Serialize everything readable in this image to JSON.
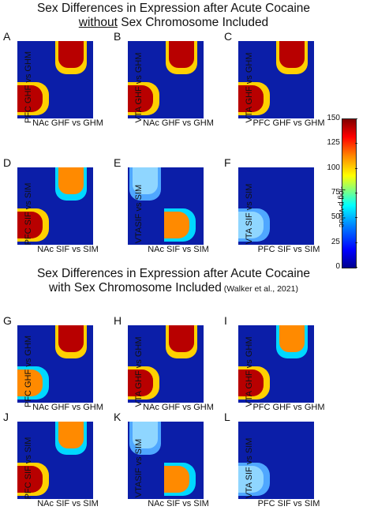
{
  "section1": {
    "title_line1": "Sex Differences in Expression after Acute Cocaine",
    "title_line2_underlined": "without",
    "title_line2_rest": " Sex Chromosome Included"
  },
  "section2": {
    "title_line1": "Sex Differences in Expression after Acute Cocaine",
    "title_line2": "with Sex Chromosome Included",
    "citation": " (Walker et al., 2021)"
  },
  "colorbar": {
    "label": "-log p-value",
    "ticks": [
      "150",
      "125",
      "100",
      "75",
      "50",
      "25",
      "0"
    ],
    "max": 150,
    "min": 0
  },
  "panels": [
    {
      "letter": "A",
      "ylabel": "PFC GHF vs GHM",
      "xlabel": "NAc GHF vs GHM"
    },
    {
      "letter": "B",
      "ylabel": "VTA GHF vs GHM",
      "xlabel": "NAc GHF vs GHM"
    },
    {
      "letter": "C",
      "ylabel": "VTA GHF vs GHM",
      "xlabel": "PFC GHF vs GHM"
    },
    {
      "letter": "D",
      "ylabel": "PFC SIF vs SIM",
      "xlabel": "NAc SIF vs SIM"
    },
    {
      "letter": "E",
      "ylabel": "VTASIF vs SIM",
      "xlabel": "NAc SIF vs SIM"
    },
    {
      "letter": "F",
      "ylabel": "VTA SIF vs SIM",
      "xlabel": "PFC SIF vs SIM"
    },
    {
      "letter": "G",
      "ylabel": "PFC GHF vs GHM",
      "xlabel": "NAc GHF vs GHM"
    },
    {
      "letter": "H",
      "ylabel": "VTA GHF vs GHM",
      "xlabel": "NAc GHF vs GHM"
    },
    {
      "letter": "I",
      "ylabel": "VTA GHF vs GHM",
      "xlabel": "PFC GHF vs GHM"
    },
    {
      "letter": "J",
      "ylabel": "PFC SIF vs SIM",
      "xlabel": "NAc SIF vs SIM"
    },
    {
      "letter": "K",
      "ylabel": "VTASIF vs SIM",
      "xlabel": "NAc SIF vs SIM"
    },
    {
      "letter": "L",
      "ylabel": "VTA SIF vs SIM",
      "xlabel": "PFC SIF vs SIM"
    }
  ],
  "tile_style": {
    "strong": "Strong red",
    "medium": "Orange/yellow",
    "weak": "Light blue",
    "none": "Dark blue"
  },
  "heatmap_levels": {
    "A": {
      "tl": "none",
      "tr": "strong",
      "bl": "strong",
      "br": "none"
    },
    "B": {
      "tl": "none",
      "tr": "strong",
      "bl": "strong",
      "br": "none"
    },
    "C": {
      "tl": "none",
      "tr": "strong",
      "bl": "strong",
      "br": "none"
    },
    "D": {
      "tl": "none",
      "tr": "medium",
      "bl": "strong",
      "br": "none"
    },
    "E": {
      "tl": "weak",
      "tr": "none",
      "bl": "none",
      "br": "medium"
    },
    "F": {
      "tl": "none",
      "tr": "none",
      "bl": "weak",
      "br": "none"
    },
    "G": {
      "tl": "none",
      "tr": "strong",
      "bl": "medium",
      "br": "none"
    },
    "H": {
      "tl": "none",
      "tr": "strong",
      "bl": "strong",
      "br": "none"
    },
    "I": {
      "tl": "none",
      "tr": "medium",
      "bl": "strong",
      "br": "none"
    },
    "J": {
      "tl": "none",
      "tr": "medium",
      "bl": "strong",
      "br": "none"
    },
    "K": {
      "tl": "weak",
      "tr": "none",
      "bl": "none",
      "br": "medium"
    },
    "L": {
      "tl": "none",
      "tr": "none",
      "bl": "weak",
      "br": "none"
    }
  }
}
